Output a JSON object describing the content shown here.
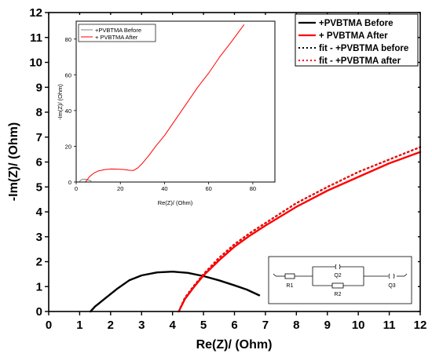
{
  "chart_data": [
    {
      "type": "line",
      "xlabel": "Re(Z)/ (Ohm)",
      "ylabel": "-Im(Z)/ (Ohm)",
      "xlim": [
        0,
        12
      ],
      "ylim": [
        0,
        12
      ],
      "xticks": [
        "0",
        "1",
        "2",
        "3",
        "4",
        "5",
        "6",
        "7",
        "8",
        "9",
        "10",
        "11",
        "12"
      ],
      "yticks": [
        "0",
        "1",
        "2",
        "3",
        "4",
        "5",
        "6",
        "7",
        "8",
        "9",
        "10",
        "11",
        "12"
      ],
      "legend_position": "top-right",
      "series": [
        {
          "name": "+PVBTMA Before",
          "color": "#000000",
          "style": "solid",
          "x": [
            1.35,
            1.5,
            1.8,
            2.2,
            2.6,
            3.0,
            3.5,
            4.0,
            4.5,
            5.0,
            5.5,
            6.0,
            6.4,
            6.8
          ],
          "y": [
            0.0,
            0.2,
            0.5,
            0.9,
            1.25,
            1.45,
            1.57,
            1.6,
            1.55,
            1.42,
            1.25,
            1.05,
            0.88,
            0.65
          ]
        },
        {
          "name": "+ PVBTMA After",
          "color": "#ff0000",
          "style": "solid",
          "x": [
            4.2,
            4.4,
            4.7,
            5.0,
            5.5,
            6.0,
            6.5,
            7.0,
            8.0,
            9.0,
            10.0,
            11.0,
            12.0
          ],
          "y": [
            0.0,
            0.5,
            1.0,
            1.45,
            2.05,
            2.6,
            3.05,
            3.45,
            4.2,
            4.85,
            5.4,
            5.95,
            6.4
          ]
        },
        {
          "name": "fit - +PVBTMA before",
          "color": "#000000",
          "style": "dotted",
          "x": [
            4.2,
            4.4,
            4.7,
            5.0,
            5.5,
            6.0,
            6.5,
            7.0,
            8.0,
            9.0,
            10.0,
            11.0,
            12.0
          ],
          "y": [
            0.0,
            0.55,
            1.05,
            1.5,
            2.15,
            2.7,
            3.15,
            3.55,
            4.35,
            5.0,
            5.6,
            6.1,
            6.6
          ]
        },
        {
          "name": "fit - +PVBTMA after",
          "color": "#ff0000",
          "style": "dotted",
          "x": [
            4.2,
            4.4,
            4.7,
            5.0,
            5.5,
            6.0,
            6.5,
            7.0,
            8.0,
            9.0,
            10.0,
            11.0,
            12.0
          ],
          "y": [
            0.0,
            0.55,
            1.05,
            1.5,
            2.15,
            2.7,
            3.15,
            3.55,
            4.35,
            5.0,
            5.6,
            6.1,
            6.6
          ]
        }
      ]
    },
    {
      "type": "line",
      "xlabel": "Re(Z)/ (Ohm)",
      "ylabel": "-Im(Z)/ (Ohm)",
      "xlim": [
        0,
        90
      ],
      "ylim": [
        0,
        90
      ],
      "xticks": [
        "0",
        "20",
        "40",
        "60",
        "80"
      ],
      "yticks": [
        "0",
        "20",
        "40",
        "60",
        "80"
      ],
      "legend_position": "top-left",
      "series": [
        {
          "name": "+PVBTMA Before",
          "color": "#808080",
          "style": "solid",
          "x": [
            1.4,
            2.0,
            3.0,
            4.0,
            5.0,
            6.0,
            6.8
          ],
          "y": [
            0.0,
            1.0,
            1.6,
            1.6,
            1.3,
            0.9,
            0.6
          ]
        },
        {
          "name": "+ PVBTMA After",
          "color": "#ff0000",
          "style": "solid",
          "x": [
            4.2,
            6,
            8,
            10,
            13,
            16,
            19,
            22,
            24,
            26,
            28,
            30,
            33,
            36,
            40,
            45,
            50,
            55,
            60,
            65,
            70,
            76
          ],
          "y": [
            0,
            3,
            5,
            6.2,
            7,
            7.3,
            7.2,
            7,
            6.6,
            6.5,
            8,
            10.5,
            15,
            20,
            26,
            35,
            44,
            53,
            61,
            70,
            78,
            88
          ]
        }
      ]
    }
  ],
  "circuit": {
    "labels": [
      "R1",
      "Q2",
      "R2",
      "Q3"
    ]
  }
}
